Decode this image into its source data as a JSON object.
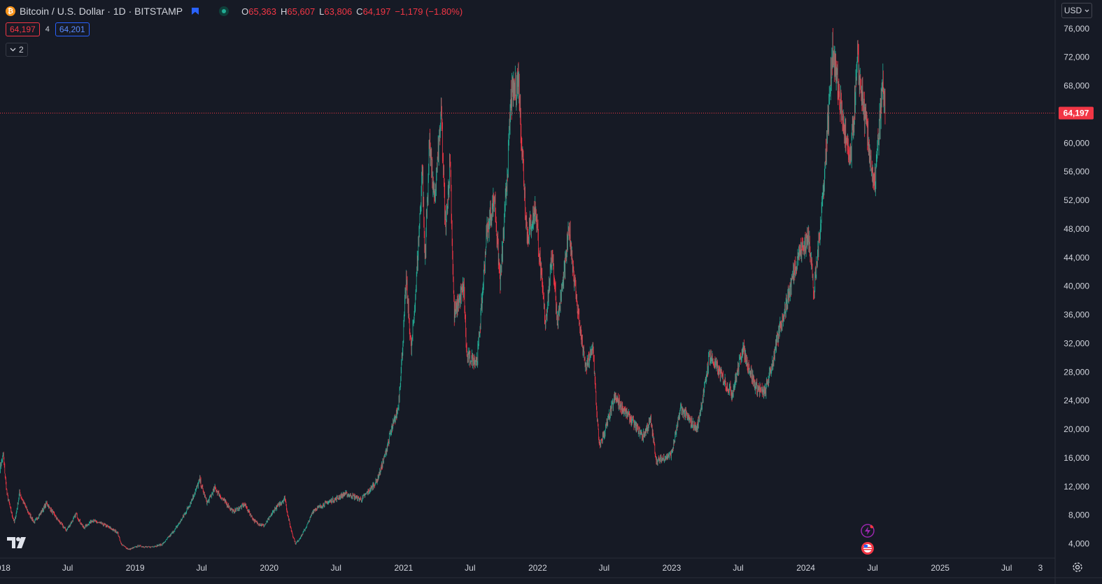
{
  "header": {
    "symbol_title": "Bitcoin / U.S. Dollar · 1D · BITSTAMP",
    "ohlc": {
      "o_label": "O",
      "o_value": "65,363",
      "h_label": "H",
      "h_value": "65,607",
      "l_label": "L",
      "l_value": "63,806",
      "c_label": "C",
      "c_value": "64,197",
      "change": "−1,179 (−1.80%)"
    },
    "sell_price": "64,197",
    "spread": "4",
    "buy_price": "64,201",
    "indicators_count": "2",
    "icons": [
      "bitcoin-icon",
      "flag-icon",
      "market-status-icon",
      "chevron-down-icon"
    ]
  },
  "currency": {
    "label": "USD"
  },
  "last_price": {
    "value": 64197,
    "label": "64,197"
  },
  "colors": {
    "background": "#161a25",
    "up": "#22ab94",
    "down": "#f23645",
    "text": "#d1d4dc",
    "grid": "#1e222d",
    "price_line": "#f23645"
  },
  "chart_data": {
    "type": "candlestick",
    "title": "Bitcoin / U.S. Dollar · 1D · BITSTAMP",
    "xlabel": "",
    "ylabel": "",
    "y_scale": "linear",
    "ylim": [
      2000,
      80000
    ],
    "xlim": [
      "2017-12-29",
      "2025-11-10"
    ],
    "grid": false,
    "y_ticks": [
      4000,
      8000,
      12000,
      16000,
      20000,
      24000,
      28000,
      32000,
      36000,
      40000,
      44000,
      48000,
      52000,
      56000,
      60000,
      64000,
      68000,
      72000,
      76000
    ],
    "y_tick_labels": [
      "4,000",
      "8,000",
      "12,000",
      "16,000",
      "20,000",
      "24,000",
      "28,000",
      "32,000",
      "36,000",
      "40,000",
      "44,000",
      "48,000",
      "52,000",
      "56,000",
      "60,000",
      "64,000",
      "68,000",
      "72,000",
      "76,000"
    ],
    "x_ticks": [
      {
        "date": "2018-01-01",
        "label": "2018"
      },
      {
        "date": "2018-07-01",
        "label": "Jul"
      },
      {
        "date": "2019-01-01",
        "label": "2019"
      },
      {
        "date": "2019-07-01",
        "label": "Jul"
      },
      {
        "date": "2020-01-01",
        "label": "2020"
      },
      {
        "date": "2020-07-01",
        "label": "Jul"
      },
      {
        "date": "2021-01-01",
        "label": "2021"
      },
      {
        "date": "2021-07-01",
        "label": "Jul"
      },
      {
        "date": "2022-01-01",
        "label": "2022"
      },
      {
        "date": "2022-07-01",
        "label": "Jul"
      },
      {
        "date": "2023-01-01",
        "label": "2023"
      },
      {
        "date": "2023-07-01",
        "label": "Jul"
      },
      {
        "date": "2024-01-01",
        "label": "2024"
      },
      {
        "date": "2024-07-01",
        "label": "Jul"
      },
      {
        "date": "2025-01-01",
        "label": "2025"
      },
      {
        "date": "2025-07-01",
        "label": "Jul"
      },
      {
        "date": "2025-10-01",
        "label": "3"
      }
    ],
    "series": [
      {
        "name": "BTCUSD",
        "points": [
          [
            "2017-12-29",
            14500
          ],
          [
            "2018-01-07",
            16500
          ],
          [
            "2018-01-17",
            11000
          ],
          [
            "2018-02-06",
            7000
          ],
          [
            "2018-02-20",
            11200
          ],
          [
            "2018-03-10",
            9000
          ],
          [
            "2018-04-01",
            7000
          ],
          [
            "2018-05-05",
            9700
          ],
          [
            "2018-06-28",
            5900
          ],
          [
            "2018-07-24",
            8200
          ],
          [
            "2018-08-14",
            6200
          ],
          [
            "2018-09-05",
            7300
          ],
          [
            "2018-10-15",
            6500
          ],
          [
            "2018-11-14",
            5600
          ],
          [
            "2018-11-25",
            3900
          ],
          [
            "2018-12-15",
            3200
          ],
          [
            "2019-01-10",
            3700
          ],
          [
            "2019-02-08",
            3500
          ],
          [
            "2019-03-15",
            3900
          ],
          [
            "2019-04-02",
            4900
          ],
          [
            "2019-05-14",
            8000
          ],
          [
            "2019-06-26",
            13000
          ],
          [
            "2019-07-16",
            9700
          ],
          [
            "2019-08-06",
            11800
          ],
          [
            "2019-09-25",
            8500
          ],
          [
            "2019-10-26",
            9500
          ],
          [
            "2019-11-25",
            7000
          ],
          [
            "2019-12-18",
            6500
          ],
          [
            "2020-01-15",
            8800
          ],
          [
            "2020-02-13",
            10400
          ],
          [
            "2020-03-13",
            4000
          ],
          [
            "2020-04-30",
            8700
          ],
          [
            "2020-06-01",
            9600
          ],
          [
            "2020-07-27",
            11000
          ],
          [
            "2020-09-08",
            10200
          ],
          [
            "2020-10-21",
            12900
          ],
          [
            "2020-11-24",
            19000
          ],
          [
            "2020-12-17",
            23000
          ],
          [
            "2021-01-08",
            41000
          ],
          [
            "2021-01-22",
            31000
          ],
          [
            "2021-02-21",
            57000
          ],
          [
            "2021-02-28",
            44000
          ],
          [
            "2021-03-13",
            61000
          ],
          [
            "2021-03-25",
            51500
          ],
          [
            "2021-04-14",
            64500
          ],
          [
            "2021-04-25",
            48000
          ],
          [
            "2021-05-08",
            58000
          ],
          [
            "2021-05-19",
            36000
          ],
          [
            "2021-06-14",
            40000
          ],
          [
            "2021-06-22",
            30000
          ],
          [
            "2021-07-20",
            29700
          ],
          [
            "2021-08-14",
            47000
          ],
          [
            "2021-09-06",
            52500
          ],
          [
            "2021-09-21",
            40500
          ],
          [
            "2021-10-20",
            66000
          ],
          [
            "2021-11-10",
            69000
          ],
          [
            "2021-12-04",
            47000
          ],
          [
            "2021-12-27",
            51000
          ],
          [
            "2022-01-22",
            35000
          ],
          [
            "2022-02-10",
            45000
          ],
          [
            "2022-02-24",
            35000
          ],
          [
            "2022-03-28",
            48000
          ],
          [
            "2022-05-12",
            28500
          ],
          [
            "2022-06-01",
            31500
          ],
          [
            "2022-06-18",
            17600
          ],
          [
            "2022-07-30",
            24500
          ],
          [
            "2022-09-10",
            21500
          ],
          [
            "2022-10-15",
            19000
          ],
          [
            "2022-11-05",
            21400
          ],
          [
            "2022-11-21",
            15500
          ],
          [
            "2022-12-31",
            16500
          ],
          [
            "2023-01-25",
            23000
          ],
          [
            "2023-03-10",
            20000
          ],
          [
            "2023-04-14",
            30500
          ],
          [
            "2023-06-15",
            25000
          ],
          [
            "2023-07-13",
            31500
          ],
          [
            "2023-08-17",
            26000
          ],
          [
            "2023-09-11",
            25000
          ],
          [
            "2023-10-24",
            34500
          ],
          [
            "2023-12-08",
            44000
          ],
          [
            "2024-01-11",
            47000
          ],
          [
            "2024-01-23",
            39000
          ],
          [
            "2024-02-28",
            61000
          ],
          [
            "2024-03-14",
            73500
          ],
          [
            "2024-04-17",
            61000
          ],
          [
            "2024-05-01",
            57000
          ],
          [
            "2024-05-21",
            71500
          ],
          [
            "2024-06-24",
            58500
          ],
          [
            "2024-07-05",
            53500
          ],
          [
            "2024-07-29",
            68500
          ],
          [
            "2024-08-04",
            64197
          ]
        ]
      }
    ],
    "annotations": [
      {
        "type": "price-line",
        "value": 64197,
        "label": "64,197"
      }
    ]
  }
}
